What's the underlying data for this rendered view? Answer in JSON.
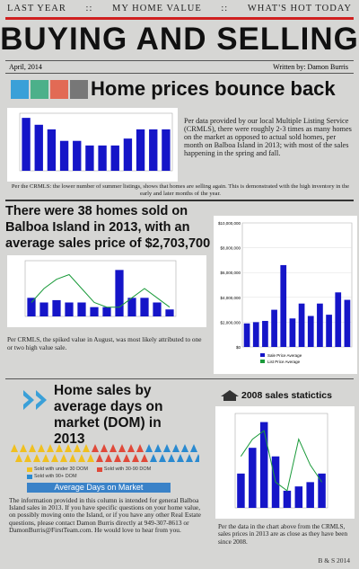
{
  "nav": [
    "LAST YEAR",
    "::",
    "MY HOME VALUE",
    "::",
    "WHAT'S HOT TODAY"
  ],
  "header": {
    "title": "BUYING AND SELLING",
    "date": "April, 2014",
    "byline": "Written by: Damon Burris"
  },
  "section1": {
    "heading": "Home prices bounce back",
    "text": "Per data provided by our local Multiple Listing Service (CRMLS), there were roughly 2-3 times as many homes on the market as opposed to actual sold homes, per month on Balboa Island in 2013; with most of the sales happening in the spring and fall.",
    "caption": "Per the CRMLS: the lower number of summer listings, shows that homes are selling again. This is demonstrated with the high inventory in the early and later months of the year.",
    "chart": {
      "type": "bar",
      "values": [
        23,
        20,
        18,
        13,
        13,
        11,
        11,
        11,
        14,
        18,
        18,
        18
      ],
      "ylim": [
        0,
        25
      ],
      "color": "#1515c8"
    }
  },
  "section2": {
    "heading": "There were 38 homes sold on Balboa Island in 2013, with an average sales price of $2,703,700",
    "caption": "Per CRMLS, the spiked value in August, was most likely attributed to one or two high value sale.",
    "chart": {
      "type": "bar-line",
      "values": [
        4,
        3,
        3.5,
        3,
        3,
        2,
        2,
        10,
        4,
        4,
        3,
        1.5
      ],
      "line_values": [
        3,
        6,
        8,
        9,
        6,
        3,
        2,
        2,
        4,
        6,
        4,
        2
      ],
      "ylim": [
        0,
        12
      ],
      "color": "#1515c8",
      "line_color": "#1a9a3a"
    },
    "price_chart": {
      "type": "bar",
      "values": [
        1900000,
        2000000,
        2100000,
        3000000,
        6600000,
        2300000,
        3500000,
        2500000,
        3500000,
        2600000,
        4400000,
        3800000
      ],
      "ylim": [
        0,
        10000000
      ],
      "yticks": [
        {
          "value": 0,
          "label": "$0"
        },
        {
          "value": 2000000,
          "label": "$2,000,000"
        },
        {
          "value": 4000000,
          "label": "$4,000,000"
        },
        {
          "value": 6000000,
          "label": "$6,000,000"
        },
        {
          "value": 8000000,
          "label": "$8,000,000"
        },
        {
          "value": 10000000,
          "label": "$10,000,000"
        }
      ],
      "color": "#1515c8",
      "legend": [
        "Sale Price Average",
        "List Price Average"
      ]
    }
  },
  "section3": {
    "heading": "Home sales by average days on market (DOM) in 2013",
    "legend": [
      {
        "label": "Sold with under 30 DOM",
        "color": "#f0c020"
      },
      {
        "label": "Sold with 30-90 DOM",
        "color": "#e04a3a"
      },
      {
        "label": "Sold with 90+ DOM",
        "color": "#2a8ad0"
      }
    ],
    "banner": "Average Days on Market",
    "text": "The information provided in this column is intended for general Balboa Island sales in 2013. If you have specific questions on your home value, on possibly moving onto the Island, or if you have any other Real Estate questions, please contact Damon Burris directly at 949-307-8613 or DamonBurris@FirstTeam.com.  He would love to hear from you."
  },
  "section4": {
    "heading": "2008 sales statictics",
    "caption": "Per the data in the chart above from the CRMLS, sales prices in 2013 are as close as they have been since 2008.",
    "chart": {
      "type": "bar-line",
      "values": [
        4,
        7,
        10,
        6,
        2,
        2.5,
        3,
        4
      ],
      "line_values": [
        6,
        8,
        9,
        3,
        2,
        8,
        5,
        3
      ],
      "ylim": [
        0,
        11
      ],
      "color": "#1515c8",
      "line_color": "#1a9a3a"
    }
  },
  "footer": "B & S 2014"
}
